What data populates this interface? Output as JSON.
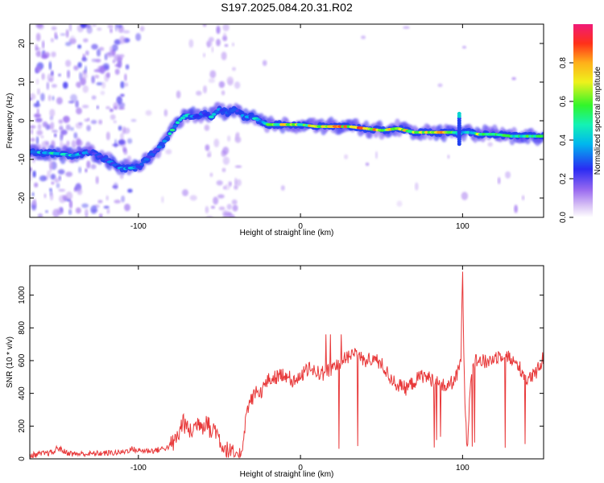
{
  "figure": {
    "title": "S197.2025.084.20.31.R02"
  },
  "chart_data": [
    {
      "type": "heatmap",
      "xlabel": "Height of straight line (km)",
      "ylabel": "Frequency (Hz)",
      "xlim": [
        -167,
        150
      ],
      "ylim": [
        -25,
        25
      ],
      "x_ticks": [
        -100,
        0,
        100
      ],
      "y_ticks": [
        -20,
        -10,
        0,
        10,
        20
      ],
      "colorbar": {
        "label": "Normalized spectral amplitude",
        "range": [
          0,
          1
        ],
        "ticks": [
          0.0,
          0.2,
          0.4,
          0.6,
          0.8
        ],
        "tick_labels": [
          "0.0",
          "0.2",
          "0.4",
          "0.6",
          "0.8"
        ]
      },
      "ridge": {
        "x": [
          -167,
          -150,
          -140,
          -130,
          -120,
          -110,
          -100,
          -95,
          -90,
          -85,
          -80,
          -75,
          -70,
          -65,
          -60,
          -55,
          -50,
          -45,
          -40,
          -35,
          -30,
          -25,
          -20,
          -10,
          0,
          10,
          20,
          30,
          40,
          50,
          60,
          70,
          80,
          90,
          95,
          98,
          100,
          105,
          110,
          120,
          130,
          140,
          150
        ],
        "frequency": [
          -8,
          -8.5,
          -9,
          -8,
          -10,
          -12.5,
          -12,
          -10,
          -8,
          -6,
          -3,
          0,
          1.5,
          1,
          2,
          1,
          3,
          2,
          3,
          1,
          1,
          0,
          -1,
          -1,
          -1,
          -1.5,
          -1.5,
          -1.5,
          -2,
          -2.5,
          -2,
          -3,
          -3,
          -3,
          -3,
          -3.5,
          -3,
          -3,
          -3.5,
          -3.5,
          -4,
          -4,
          -4
        ],
        "amplitude": [
          0.4,
          0.5,
          0.45,
          0.35,
          0.3,
          0.45,
          0.4,
          0.35,
          0.3,
          0.35,
          0.5,
          0.45,
          0.5,
          0.4,
          0.35,
          0.45,
          0.4,
          0.35,
          0.3,
          0.4,
          0.45,
          0.5,
          0.6,
          0.75,
          0.7,
          0.85,
          0.95,
          0.85,
          0.9,
          0.8,
          0.7,
          0.8,
          0.9,
          0.75,
          0.65,
          0.55,
          0.5,
          0.55,
          0.7,
          0.75,
          0.65,
          0.6,
          0.55
        ]
      }
    },
    {
      "type": "line",
      "xlabel": "Height of straight line (km)",
      "ylabel": "SNR (10 * v/v)",
      "xlim": [
        -167,
        150
      ],
      "ylim": [
        0,
        1180
      ],
      "x_ticks": [
        -100,
        0,
        100
      ],
      "y_ticks": [
        0,
        200,
        400,
        600,
        800,
        1000
      ],
      "color": "#e8393a",
      "series": [
        {
          "x": [
            -167,
            -160,
            -152,
            -150,
            -145,
            -140,
            -130,
            -120,
            -110,
            -104,
            -100,
            -90,
            -82,
            -78,
            -75,
            -72,
            -71,
            -70,
            -68,
            -65,
            -62,
            -60,
            -58,
            -55,
            -53,
            -50,
            -48,
            -45,
            -42,
            -38,
            -36,
            -35,
            -33,
            -31,
            -29,
            -27,
            -25,
            -22,
            -20,
            -15,
            -10,
            -5,
            0,
            5,
            10,
            15,
            20,
            25,
            30,
            35,
            40,
            45,
            50,
            55,
            60,
            65,
            70,
            75,
            80,
            85,
            90,
            95,
            97,
            98,
            99,
            100,
            101,
            102,
            103,
            104,
            105,
            106,
            108,
            110,
            115,
            120,
            125,
            128,
            130,
            135,
            140,
            145,
            150
          ],
          "y": [
            20,
            30,
            40,
            70,
            40,
            30,
            30,
            35,
            40,
            60,
            50,
            50,
            70,
            100,
            150,
            250,
            180,
            200,
            160,
            200,
            230,
            200,
            250,
            150,
            200,
            120,
            80,
            50,
            30,
            20,
            60,
            150,
            300,
            350,
            380,
            420,
            400,
            450,
            480,
            500,
            520,
            480,
            500,
            550,
            530,
            520,
            560,
            600,
            620,
            650,
            600,
            610,
            580,
            500,
            450,
            430,
            470,
            510,
            490,
            460,
            440,
            480,
            520,
            560,
            600,
            1180,
            500,
            200,
            80,
            300,
            500,
            580,
            600,
            600,
            590,
            620,
            640,
            630,
            600,
            560,
            480,
            520,
            620
          ]
        }
      ]
    }
  ]
}
